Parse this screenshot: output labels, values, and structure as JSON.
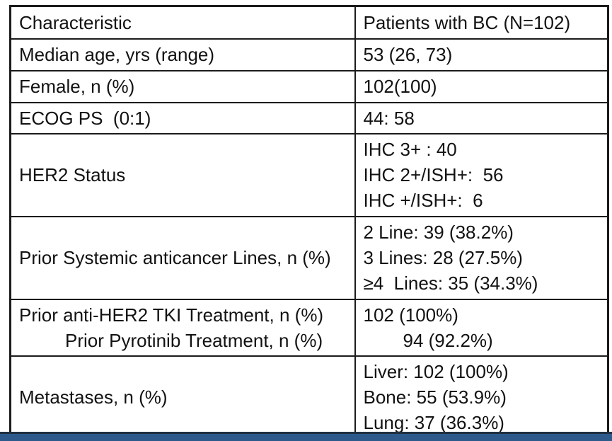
{
  "accent": {
    "bottom_bar_color": "#2e5a8b",
    "bottom_bar_top_line_color": "#1f3040",
    "table_border_color": "#1b1b1b",
    "text_color": "#121212",
    "background_color": "#ffffff"
  },
  "table": {
    "header": {
      "characteristic": "Characteristic",
      "value": "Patients with BC (N=102)"
    },
    "rows": [
      {
        "characteristic_lines": [
          "Median age, yrs (range)"
        ],
        "value_lines": [
          "53 (26, 73)"
        ]
      },
      {
        "characteristic_lines": [
          "Female, n (%)"
        ],
        "value_lines": [
          "102(100)"
        ]
      },
      {
        "characteristic_lines": [
          "ECOG PS  (0:1)"
        ],
        "value_lines": [
          "44: 58"
        ]
      },
      {
        "characteristic_lines": [
          "HER2 Status"
        ],
        "value_lines": [
          "IHC 3+ : 40",
          "IHC 2+/ISH+:  56",
          "IHC +/ISH+:  6"
        ]
      },
      {
        "characteristic_lines": [
          "Prior Systemic anticancer Lines, n (%)"
        ],
        "value_lines": [
          "2 Line: 39 (38.2%)",
          "3 Lines: 28 (27.5%)",
          "≥4  Lines: 35 (34.3%)"
        ]
      },
      {
        "characteristic_lines": [
          "Prior anti-HER2 TKI Treatment, n (%)",
          "Prior Pyrotinib Treatment, n (%)"
        ],
        "value_lines": [
          "102 (100%)",
          "94 (92.2%)"
        ]
      },
      {
        "characteristic_lines": [
          "Metastases, n (%)"
        ],
        "value_lines": [
          "Liver: 102 (100%)",
          "Bone: 55 (53.9%)",
          "Lung: 37 (36.3%)"
        ]
      }
    ]
  }
}
